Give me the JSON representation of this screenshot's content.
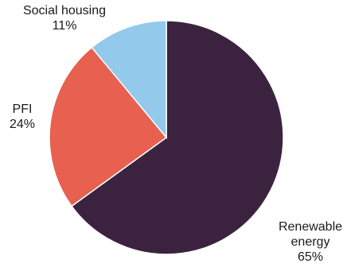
{
  "chart_data": {
    "type": "pie",
    "title": "",
    "slices": [
      {
        "label_lines": [
          "Renewable",
          "energy"
        ],
        "percent_label": "65%",
        "value": 65,
        "color": "#3b2340"
      },
      {
        "label_lines": [
          "PFI"
        ],
        "percent_label": "24%",
        "value": 24,
        "color": "#e8604f"
      },
      {
        "label_lines": [
          "Social housing"
        ],
        "percent_label": "11%",
        "value": 11,
        "color": "#93c9ea"
      }
    ],
    "start": "12 o'clock",
    "direction": "clockwise",
    "slice_border_color": "#ffffff",
    "legend": "none"
  }
}
